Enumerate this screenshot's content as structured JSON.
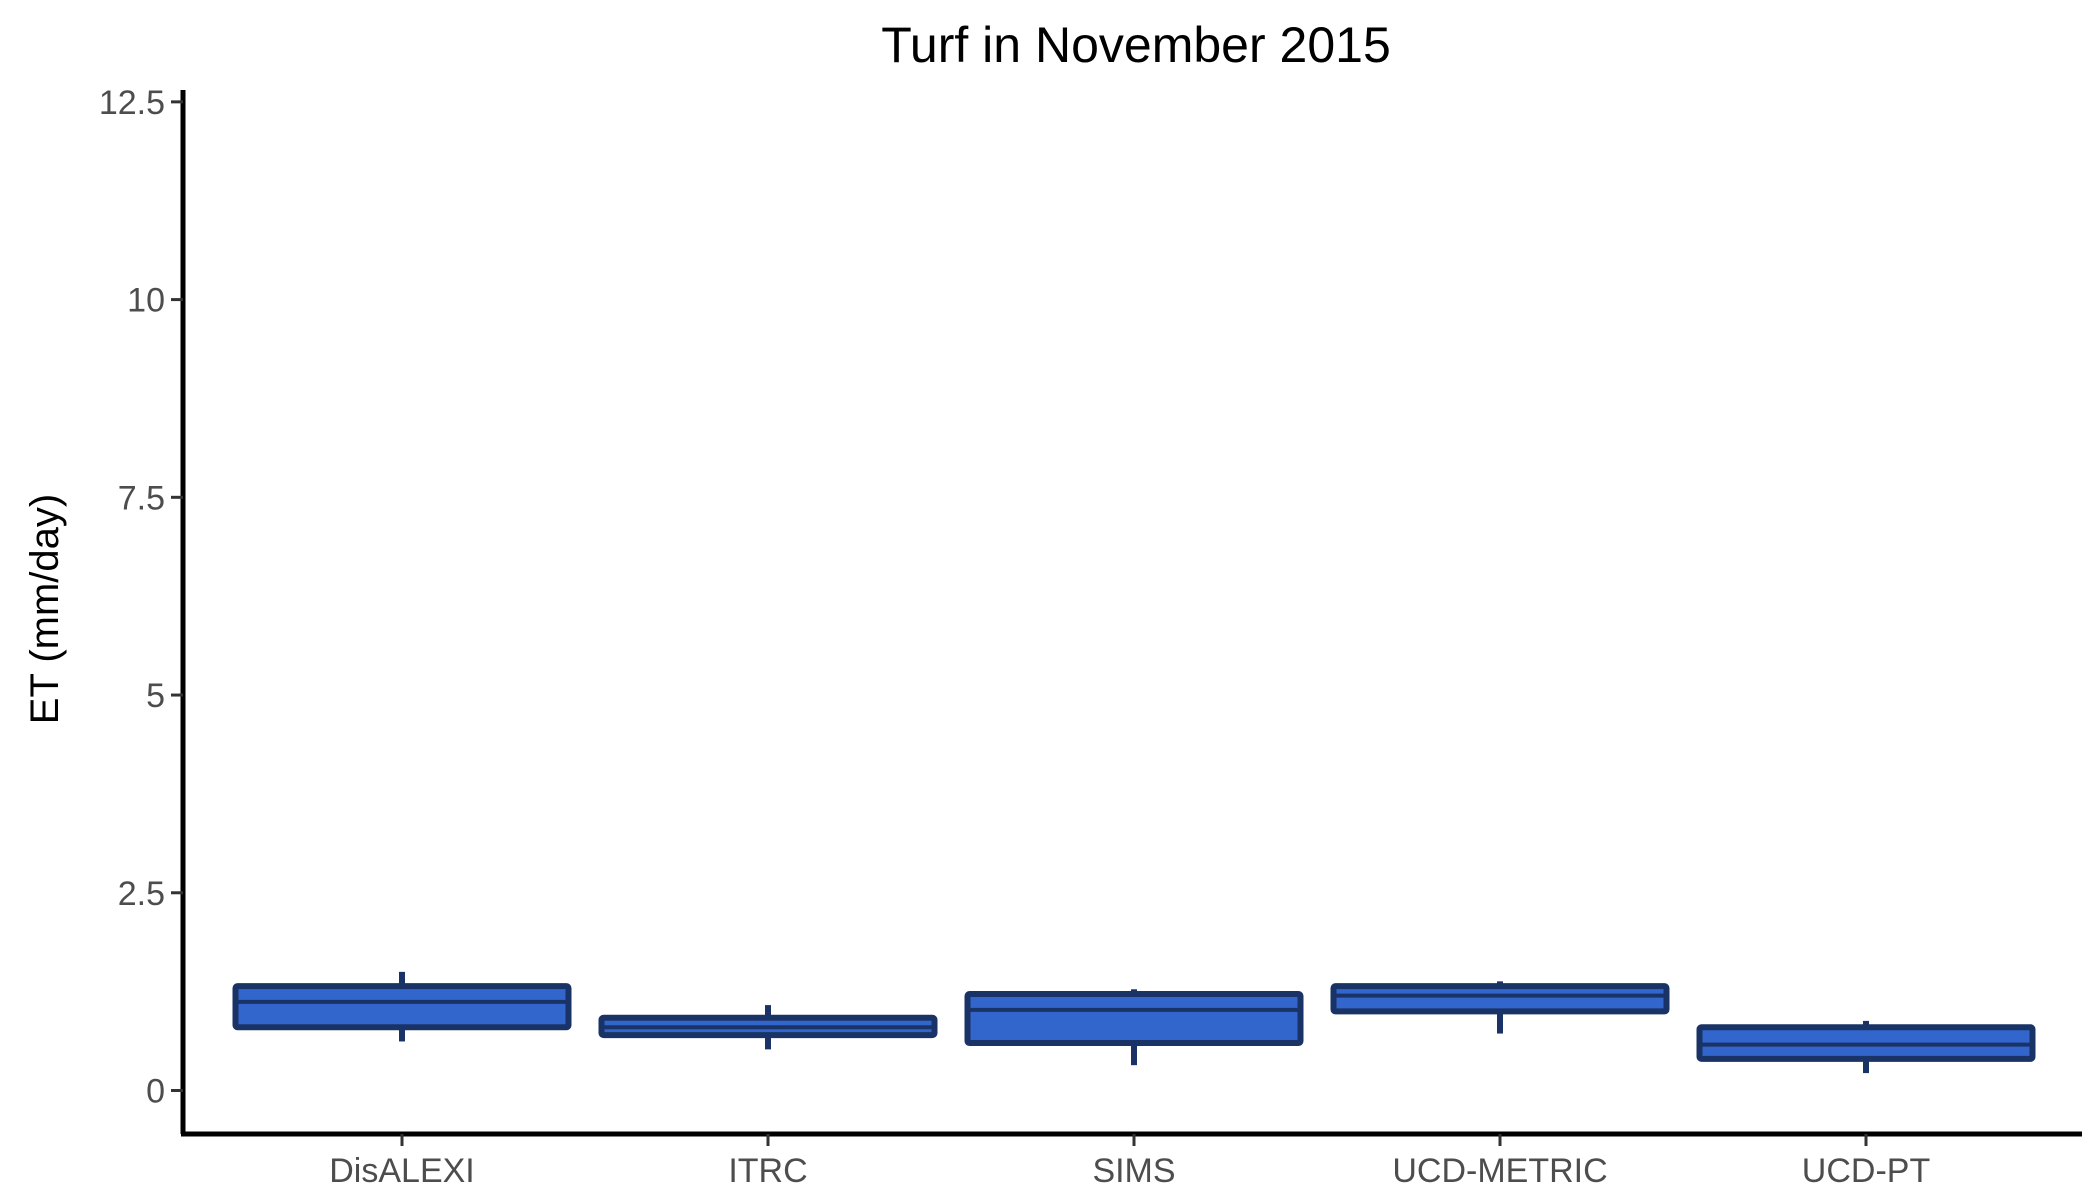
{
  "chart_data": {
    "type": "boxplot",
    "title": "Turf in November 2015",
    "xlabel": "",
    "ylabel": "ET (mm/day)",
    "ylim": [
      -0.55,
      12.65
    ],
    "yticks": [
      0,
      2.5,
      5,
      7.5,
      10,
      12.5
    ],
    "ytick_labels": [
      "0",
      "2.5",
      "5",
      "7.5",
      "10",
      "12.5"
    ],
    "grid": false,
    "legend": "none",
    "categories": [
      "DisALEXI",
      "ITRC",
      "SIMS",
      "UCD-METRIC",
      "UCD-PT"
    ],
    "boxes": [
      {
        "category": "DisALEXI",
        "min": 0.62,
        "q1": 0.8,
        "median": 1.12,
        "q3": 1.32,
        "max": 1.5
      },
      {
        "category": "ITRC",
        "min": 0.52,
        "q1": 0.7,
        "median": 0.8,
        "q3": 0.92,
        "max": 1.08
      },
      {
        "category": "SIMS",
        "min": 0.32,
        "q1": 0.6,
        "median": 1.02,
        "q3": 1.22,
        "max": 1.28
      },
      {
        "category": "UCD-METRIC",
        "min": 0.72,
        "q1": 1.0,
        "median": 1.2,
        "q3": 1.32,
        "max": 1.38
      },
      {
        "category": "UCD-PT",
        "min": 0.22,
        "q1": 0.4,
        "median": 0.58,
        "q3": 0.8,
        "max": 0.88
      }
    ],
    "colors": {
      "fill": "#3366cc",
      "stroke": "#1a3366",
      "axis": "#000000"
    }
  }
}
